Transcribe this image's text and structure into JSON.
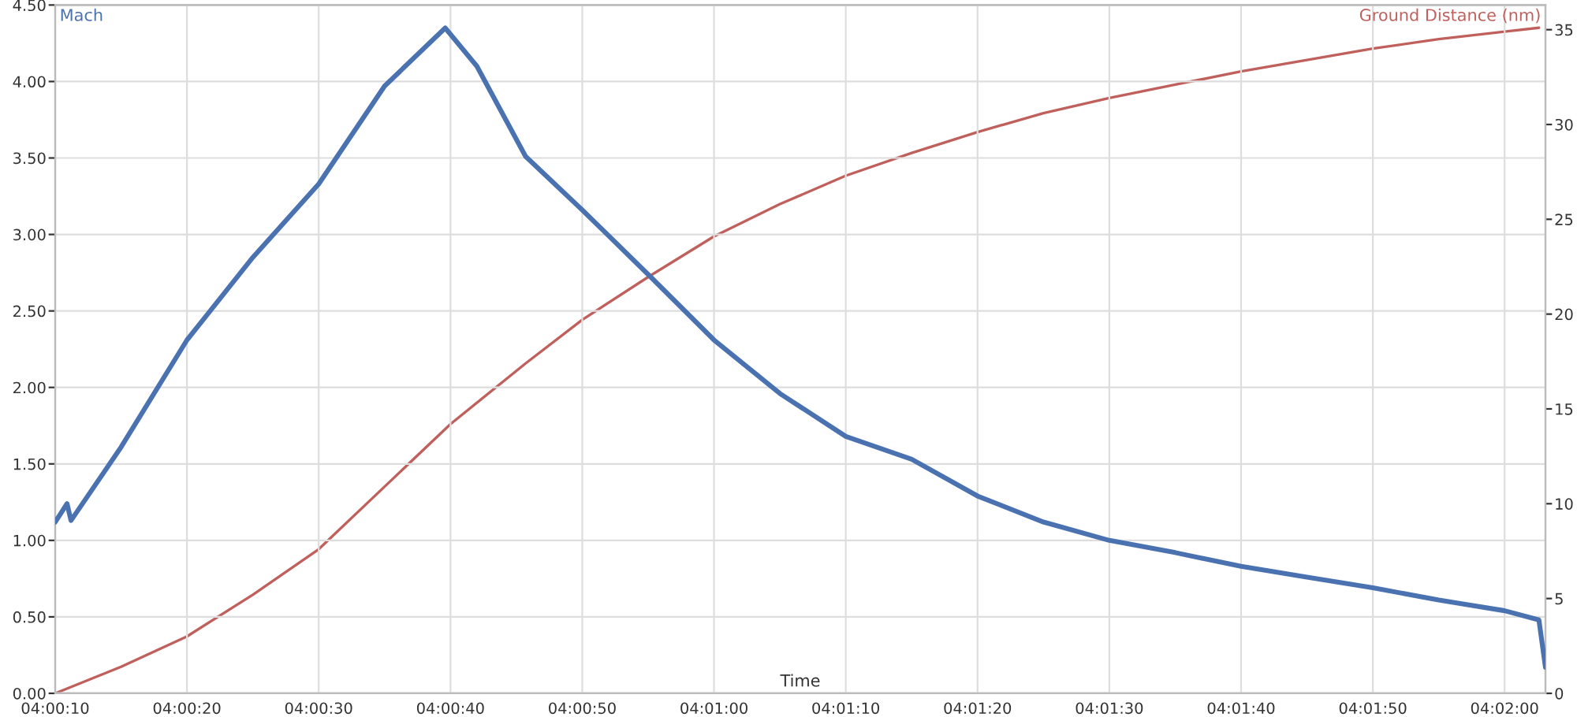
{
  "chart_data": {
    "type": "line",
    "xlabel": "Time",
    "ylabel": "Mach",
    "y2label": "Ground Distance (nm)",
    "xlim": [
      4.002778,
      4.034194
    ],
    "xticks": [
      {
        "value": 4.002778,
        "label": "04:00:10"
      },
      {
        "value": 4.005556,
        "label": "04:00:20"
      },
      {
        "value": 4.008333,
        "label": "04:00:30"
      },
      {
        "value": 4.011111,
        "label": "04:00:40"
      },
      {
        "value": 4.013889,
        "label": "04:00:50"
      },
      {
        "value": 4.016667,
        "label": "04:01:00"
      },
      {
        "value": 4.019444,
        "label": "04:01:10"
      },
      {
        "value": 4.022222,
        "label": "04:01:20"
      },
      {
        "value": 4.025,
        "label": "04:01:30"
      },
      {
        "value": 4.027778,
        "label": "04:01:40"
      },
      {
        "value": 4.030556,
        "label": "04:01:50"
      },
      {
        "value": 4.033333,
        "label": "04:02:00"
      }
    ],
    "ylim": [
      0,
      4.5
    ],
    "yticks": [
      {
        "value": 0,
        "label": "0.00"
      },
      {
        "value": 0.5,
        "label": "0.50"
      },
      {
        "value": 1,
        "label": "1.00"
      },
      {
        "value": 1.5,
        "label": "1.50"
      },
      {
        "value": 2,
        "label": "2.00"
      },
      {
        "value": 2.5,
        "label": "2.50"
      },
      {
        "value": 3,
        "label": "3.00"
      },
      {
        "value": 3.5,
        "label": "3.50"
      },
      {
        "value": 4,
        "label": "4.00"
      },
      {
        "value": 4.5,
        "label": "4.50"
      }
    ],
    "y2lim": [
      0,
      36.3
    ],
    "y2ticks": [
      0,
      5,
      10,
      15,
      20,
      25,
      30,
      35
    ],
    "grid": true,
    "marker": "none",
    "line_style": "solid",
    "series": [
      {
        "color": "#4a72b0",
        "x": [
          4.002778,
          4.003028,
          4.003111,
          4.004167,
          4.005556,
          4.006944,
          4.008333,
          4.009722,
          4.011,
          4.011667,
          4.012694,
          4.013889,
          4.015306,
          4.016667,
          4.018056,
          4.019444,
          4.020833,
          4.022222,
          4.023611,
          4.025,
          4.026389,
          4.027778,
          4.029167,
          4.030556,
          4.031944,
          4.033333,
          4.034056,
          4.034194
        ],
        "values": [
          1.12,
          1.24,
          1.13,
          1.61,
          2.31,
          2.85,
          3.33,
          3.97,
          4.35,
          4.1,
          3.51,
          3.16,
          2.73,
          2.31,
          1.96,
          1.68,
          1.53,
          1.29,
          1.12,
          1.0,
          0.92,
          0.83,
          0.76,
          0.69,
          0.61,
          0.54,
          0.48,
          0.17
        ]
      },
      {
        "color": "#c0605c",
        "axis": "y2",
        "x": [
          4.002778,
          4.004167,
          4.005556,
          4.006944,
          4.008333,
          4.009722,
          4.011111,
          4.012694,
          4.013889,
          4.015306,
          4.016667,
          4.018056,
          4.019444,
          4.020833,
          4.022222,
          4.023611,
          4.025,
          4.026389,
          4.027778,
          4.029167,
          4.030556,
          4.031944,
          4.033333,
          4.034056
        ],
        "values": [
          0,
          1.4,
          3.0,
          5.2,
          7.6,
          10.9,
          14.2,
          17.4,
          19.7,
          22.0,
          24.1,
          25.8,
          27.3,
          28.5,
          29.6,
          30.6,
          31.4,
          32.1,
          32.8,
          33.4,
          34.0,
          34.5,
          34.9,
          35.1
        ]
      }
    ]
  }
}
